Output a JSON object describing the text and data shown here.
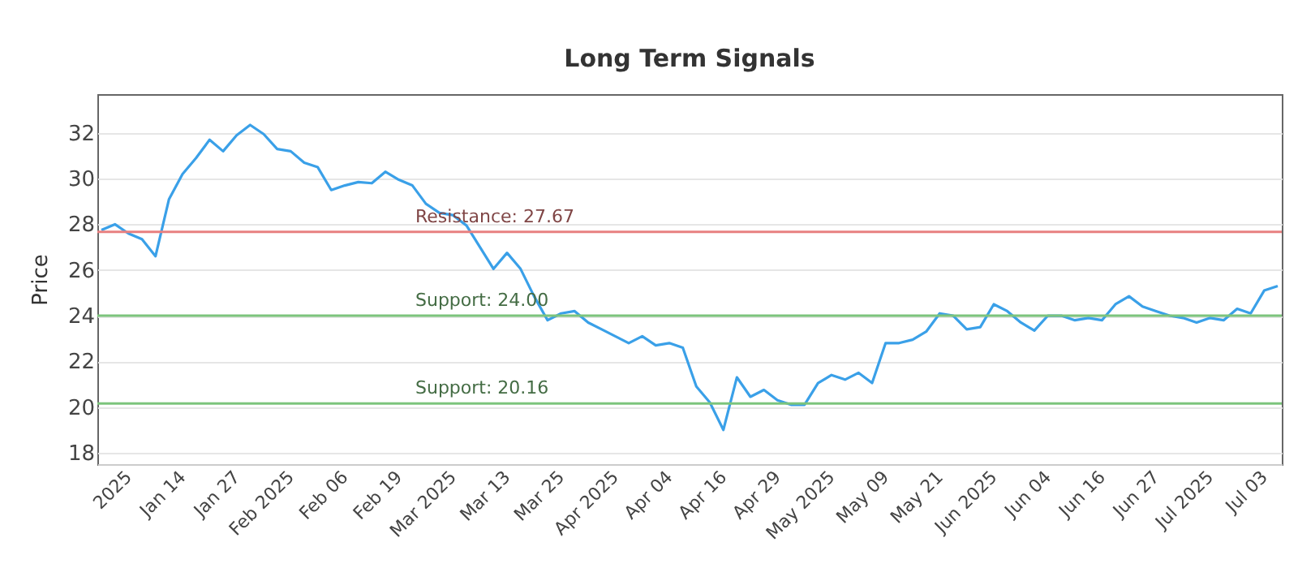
{
  "chart_data": {
    "type": "line",
    "title": "Long Term Signals",
    "ylabel": "Price",
    "categories": [
      null,
      null,
      "2025",
      null,
      null,
      null,
      "Jan 14",
      null,
      null,
      null,
      "Jan 27",
      null,
      null,
      null,
      "Feb 2025",
      null,
      null,
      null,
      "Feb 06",
      null,
      null,
      null,
      "Feb 19",
      null,
      null,
      null,
      "Mar 2025",
      null,
      null,
      null,
      "Mar 13",
      null,
      null,
      null,
      "Mar 25",
      null,
      null,
      null,
      "Apr 2025",
      null,
      null,
      null,
      "Apr 04",
      null,
      null,
      null,
      "Apr 16",
      null,
      null,
      null,
      "Apr 29",
      null,
      null,
      null,
      "May 2025",
      null,
      null,
      null,
      "May 09",
      null,
      null,
      null,
      "May 21",
      null,
      null,
      null,
      "Jun 2025",
      null,
      null,
      null,
      "Jun 04",
      null,
      null,
      null,
      "Jun 16",
      null,
      null,
      null,
      "Jun 27",
      null,
      null,
      null,
      "Jul 2025",
      null,
      null,
      null,
      "Jul 03",
      null
    ],
    "series": [
      {
        "color": "#3aa0e8",
        "values": [
          27.75,
          28.0,
          27.6,
          27.35,
          26.6,
          29.1,
          30.2,
          30.9,
          31.7,
          31.2,
          31.9,
          32.35,
          31.95,
          31.3,
          31.2,
          30.7,
          30.5,
          29.5,
          29.7,
          29.85,
          29.8,
          30.3,
          29.95,
          29.7,
          28.9,
          28.5,
          28.4,
          27.95,
          27.0,
          26.05,
          26.75,
          26.05,
          24.85,
          23.8,
          24.1,
          24.2,
          23.7,
          23.4,
          23.1,
          22.8,
          23.1,
          22.7,
          22.8,
          22.6,
          20.9,
          20.2,
          19.0,
          21.3,
          20.45,
          20.75,
          20.3,
          20.1,
          20.1,
          21.05,
          21.4,
          21.2,
          21.5,
          21.05,
          22.8,
          22.8,
          22.95,
          23.3,
          24.1,
          24.0,
          23.4,
          23.5,
          24.5,
          24.2,
          23.7,
          23.35,
          24.0,
          24.0,
          23.8,
          23.9,
          23.8,
          24.5,
          24.85,
          24.4,
          24.2,
          24.0,
          23.9,
          23.7,
          23.9,
          23.8,
          24.3,
          24.1,
          25.1,
          25.3
        ]
      }
    ],
    "ylim": [
      17.5,
      33.7
    ],
    "yticks": [
      18,
      20,
      22,
      24,
      26,
      28,
      30,
      32
    ],
    "grid": "y",
    "marker": "none",
    "line_style": "solid",
    "ref_lines": [
      {
        "axis": "y",
        "value": 27.67,
        "label": "Resistance: 27.67",
        "color": "#e88080"
      },
      {
        "axis": "y",
        "value": 24.0,
        "label": "Support: 24.00",
        "color": "#7cc47c"
      },
      {
        "axis": "y",
        "value": 20.16,
        "label": "Support: 20.16",
        "color": "#7cc47c"
      }
    ]
  }
}
